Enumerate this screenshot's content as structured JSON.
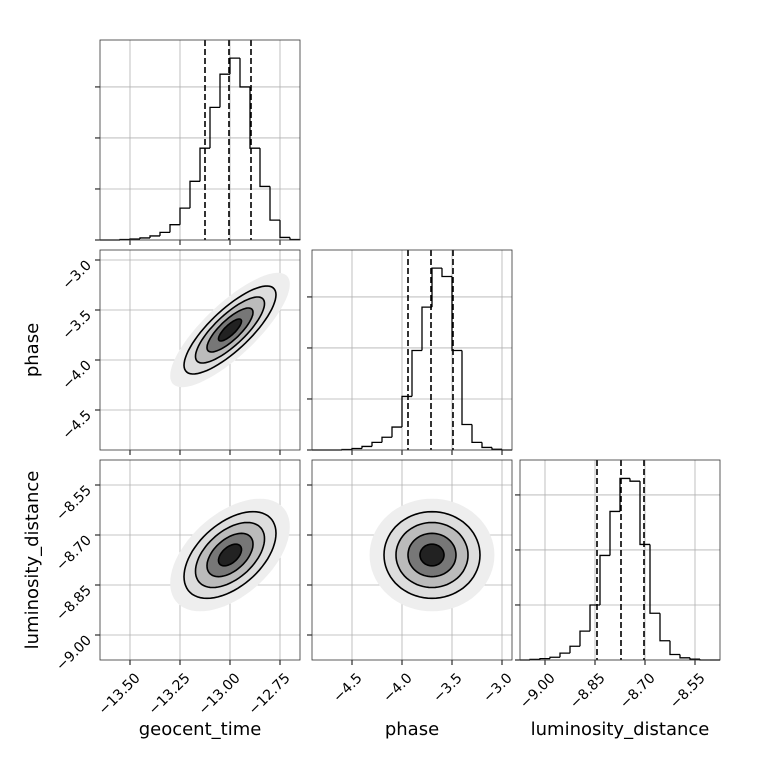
{
  "chart_data": {
    "type": "corner",
    "parameters": [
      {
        "name": "geocent_time",
        "lim": [
          -13.65,
          -12.65
        ],
        "ticks": [
          {
            "value": -13.5,
            "label": "−13.50"
          },
          {
            "value": -13.25,
            "label": "−13.25"
          },
          {
            "value": -13.0,
            "label": "−13.00"
          },
          {
            "value": -12.75,
            "label": "−12.75"
          }
        ],
        "quantiles": [
          -13.125,
          -13.005,
          -12.895
        ],
        "hist": {
          "bins": [
            -13.65,
            -13.6,
            -13.55,
            -13.5,
            -13.45,
            -13.4,
            -13.35,
            -13.3,
            -13.25,
            -13.2,
            -13.15,
            -13.1,
            -13.05,
            -13.0,
            -12.95,
            -12.9,
            -12.85,
            -12.8,
            -12.75,
            -12.7,
            -12.65
          ],
          "counts": [
            0,
            0,
            2,
            4,
            8,
            16,
            30,
            60,
            125,
            230,
            360,
            520,
            650,
            713,
            600,
            360,
            210,
            78,
            10,
            2
          ],
          "ylim": [
            0,
            784
          ],
          "yticks": [
            0,
            200,
            400,
            600
          ]
        }
      },
      {
        "name": "phase",
        "lim": [
          -4.9,
          -2.9
        ],
        "ticks": [
          {
            "value": -4.5,
            "label": "−4.5"
          },
          {
            "value": -4.0,
            "label": "−4.0"
          },
          {
            "value": -3.5,
            "label": "−3.5"
          },
          {
            "value": -3.0,
            "label": "−3.0"
          }
        ],
        "quantiles": [
          -3.94,
          -3.71,
          -3.49
        ],
        "hist": {
          "bins": [
            -4.9,
            -4.8,
            -4.7,
            -4.6,
            -4.5,
            -4.4,
            -4.3,
            -4.2,
            -4.1,
            -4.0,
            -3.9,
            -3.8,
            -3.7,
            -3.6,
            -3.5,
            -3.4,
            -3.3,
            -3.2,
            -3.1,
            -3.0,
            -2.9
          ],
          "counts": [
            0,
            0,
            0,
            2,
            6,
            14,
            30,
            50,
            90,
            210,
            390,
            560,
            713,
            680,
            390,
            100,
            30,
            10,
            3,
            0
          ],
          "ylim": [
            0,
            784
          ],
          "yticks": [
            0,
            200,
            400,
            600
          ]
        }
      },
      {
        "name": "luminosity_distance",
        "lim": [
          -9.075,
          -8.475
        ],
        "ticks": [
          {
            "value": -9.0,
            "label": "−9.00"
          },
          {
            "value": -8.85,
            "label": "−8.85"
          },
          {
            "value": -8.7,
            "label": "−8.70"
          },
          {
            "value": -8.55,
            "label": "−8.55"
          }
        ],
        "quantiles": [
          -8.844,
          -8.772,
          -8.703
        ],
        "hist": {
          "bins": [
            -9.075,
            -9.045,
            -9.015,
            -8.985,
            -8.955,
            -8.925,
            -8.895,
            -8.865,
            -8.835,
            -8.805,
            -8.775,
            -8.745,
            -8.715,
            -8.685,
            -8.655,
            -8.625,
            -8.595,
            -8.565,
            -8.535,
            -8.505,
            -8.475
          ],
          "counts": [
            0,
            2,
            5,
            10,
            25,
            50,
            105,
            200,
            380,
            540,
            660,
            650,
            420,
            170,
            70,
            20,
            8,
            3,
            0,
            0
          ],
          "ylim": [
            0,
            727
          ],
          "yticks": [
            0,
            200,
            400,
            600
          ]
        }
      }
    ],
    "contours": [
      {
        "x": 0,
        "y": 1,
        "center": [
          -13.0,
          -3.7
        ],
        "sigma": [
          0.115,
          0.22
        ],
        "rho": 0.8
      },
      {
        "x": 0,
        "y": 2,
        "center": [
          -13.0,
          -8.76
        ],
        "sigma": [
          0.115,
          0.065
        ],
        "rho": 0.5
      },
      {
        "x": 1,
        "y": 2,
        "center": [
          -3.7,
          -8.76
        ],
        "sigma": [
          0.24,
          0.065
        ],
        "rho": 0.0
      }
    ],
    "levels": [
      2.6,
      2.0,
      1.5,
      1.0,
      0.5
    ],
    "shades": [
      "#eeeeee",
      "#dddddd",
      "#bbbbbb",
      "#777777",
      "#222222"
    ],
    "line_color": "#000000",
    "grid": true
  }
}
